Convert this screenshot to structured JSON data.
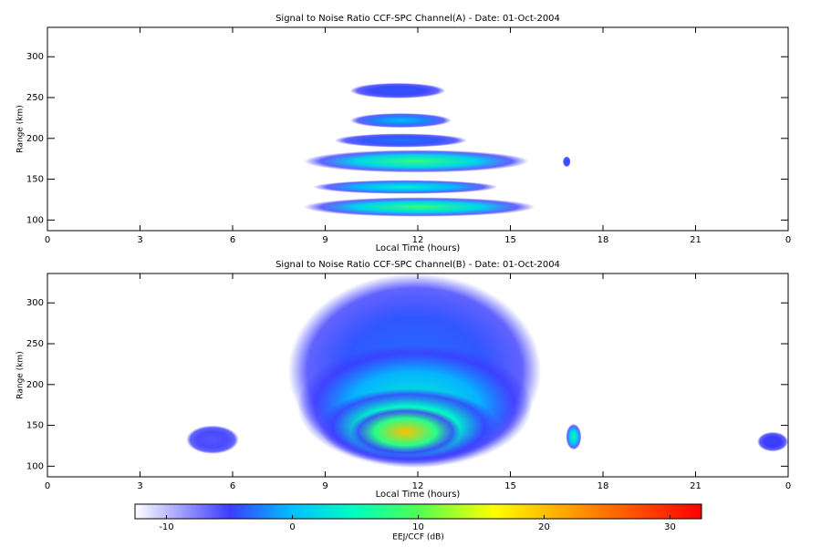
{
  "chart_data": [
    {
      "type": "heatmap",
      "title": "Signal to Noise Ratio CCF-SPC Channel(A) - Date: 01-Oct-2004",
      "xlabel": "Local Time (hours)",
      "ylabel": "Range (km)",
      "xlim": [
        0,
        24
      ],
      "xticks": [
        0,
        3,
        6,
        9,
        12,
        15,
        18,
        21,
        {
          "value": 24,
          "label": "0"
        }
      ],
      "ylim": [
        87,
        336
      ],
      "yticks": [
        100,
        150,
        200,
        250,
        300
      ],
      "features": [
        {
          "t": [
            8.3,
            15.8
          ],
          "range": [
            104,
            128
          ],
          "snr": 8
        },
        {
          "t": [
            8.6,
            14.6
          ],
          "range": [
            132,
            149
          ],
          "snr": 4
        },
        {
          "t": [
            8.3,
            15.6
          ],
          "range": [
            158,
            186
          ],
          "snr": 8
        },
        {
          "t": [
            9.3,
            13.6
          ],
          "range": [
            189,
            206
          ],
          "snr": -3
        },
        {
          "t": [
            9.8,
            13.1
          ],
          "range": [
            213,
            231
          ],
          "snr": 0
        },
        {
          "t": [
            9.8,
            12.9
          ],
          "range": [
            249,
            268
          ],
          "snr": -4
        },
        {
          "t": [
            16.7,
            16.95
          ],
          "range": [
            165,
            178
          ],
          "snr": -4
        }
      ]
    },
    {
      "type": "heatmap",
      "title": "Signal to Noise Ratio CCF-SPC Channel(B) - Date: 01-Oct-2004",
      "xlabel": "Local Time (hours)",
      "ylabel": "Range (km)",
      "xlim": [
        0,
        24
      ],
      "xticks": [
        0,
        3,
        6,
        9,
        12,
        15,
        18,
        21,
        {
          "value": 24,
          "label": "0"
        }
      ],
      "ylim": [
        87,
        336
      ],
      "yticks": [
        100,
        150,
        200,
        250,
        300
      ],
      "features": [
        {
          "t": [
            7.8,
            16.0
          ],
          "range": [
            98,
            336
          ],
          "snr": -3
        },
        {
          "t": [
            8.1,
            15.7
          ],
          "range": [
            98,
            250
          ],
          "snr": 4
        },
        {
          "t": [
            8.8,
            14.6
          ],
          "range": [
            102,
            195
          ],
          "snr": 13
        },
        {
          "t": [
            9.8,
            13.4
          ],
          "range": [
            112,
            172
          ],
          "snr": 20
        },
        {
          "t": [
            16.8,
            17.3
          ],
          "range": [
            120,
            152
          ],
          "snr": 6
        },
        {
          "t": [
            23.0,
            24.0
          ],
          "range": [
            118,
            142
          ],
          "snr": -5
        },
        {
          "t": [
            4.5,
            6.2
          ],
          "range": [
            115,
            150
          ],
          "snr": -6
        }
      ]
    }
  ],
  "colorbar": {
    "label": "EEJ/CCF (dB)",
    "lim": [
      -12.5,
      32.5
    ],
    "ticks": [
      -10,
      0,
      10,
      20,
      30
    ],
    "colorscale": [
      [
        -12.5,
        "#ffffff"
      ],
      [
        -5,
        "#3c3cff"
      ],
      [
        0,
        "#00c0ff"
      ],
      [
        5,
        "#00ffc0"
      ],
      [
        10,
        "#50ff50"
      ],
      [
        16,
        "#ffff00"
      ],
      [
        23,
        "#ff9000"
      ],
      [
        32.5,
        "#ff0000"
      ]
    ]
  }
}
